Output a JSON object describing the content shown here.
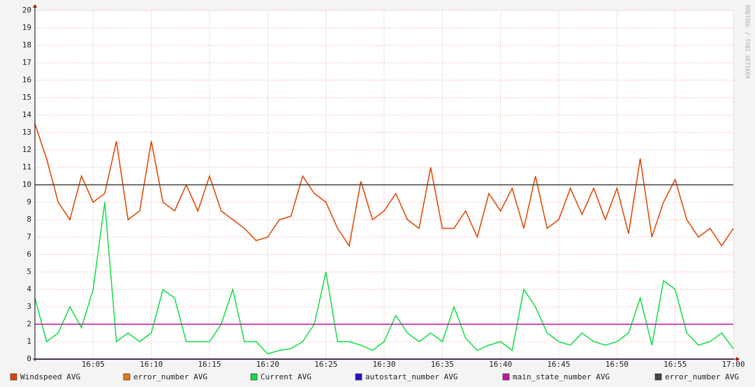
{
  "chart_data": {
    "type": "line",
    "watermark": "RRDTOOL / TOBI OETIKER",
    "x": [
      0,
      1,
      2,
      3,
      4,
      5,
      6,
      7,
      8,
      9,
      10,
      11,
      12,
      13,
      14,
      15,
      16,
      17,
      18,
      19,
      20,
      21,
      22,
      23,
      24,
      25,
      26,
      27,
      28,
      29,
      30,
      31,
      32,
      33,
      34,
      35,
      36,
      37,
      38,
      39,
      40,
      41,
      42,
      43,
      44,
      45,
      46,
      47,
      48,
      49,
      50,
      51,
      52,
      53,
      54,
      55,
      56,
      57,
      58,
      59,
      60
    ],
    "xlim": [
      0,
      60
    ],
    "xticks": [
      {
        "value": 5,
        "label": "16:05"
      },
      {
        "value": 10,
        "label": "16:10"
      },
      {
        "value": 15,
        "label": "16:15"
      },
      {
        "value": 20,
        "label": "16:20"
      },
      {
        "value": 25,
        "label": "16:25"
      },
      {
        "value": 30,
        "label": "16:30"
      },
      {
        "value": 35,
        "label": "16:35"
      },
      {
        "value": 40,
        "label": "16:40"
      },
      {
        "value": 45,
        "label": "16:45"
      },
      {
        "value": 50,
        "label": "16:50"
      },
      {
        "value": 55,
        "label": "16:55"
      },
      {
        "value": 60,
        "label": "17:00"
      }
    ],
    "ylim": [
      0,
      20
    ],
    "yticks": [
      0,
      1,
      2,
      3,
      4,
      5,
      6,
      7,
      8,
      9,
      10,
      11,
      12,
      13,
      14,
      15,
      16,
      17,
      18,
      19,
      20
    ],
    "grid": true,
    "series": [
      {
        "name": "Windspeed AVG",
        "color": "#dd4400",
        "values": [
          13.5,
          11.5,
          9,
          8,
          10.5,
          9,
          9.5,
          12.5,
          8,
          8.5,
          12.5,
          9,
          8.5,
          10,
          8.5,
          10.5,
          8.5,
          8,
          7.5,
          6.8,
          7,
          8,
          8.2,
          10.5,
          9.5,
          9,
          7.5,
          6.5,
          10.2,
          8,
          8.5,
          9.5,
          8,
          7.5,
          11,
          7.5,
          7.5,
          8.5,
          7,
          9.5,
          8.5,
          9.8,
          7.5,
          10.5,
          7.5,
          8,
          9.8,
          8.3,
          9.8,
          8,
          9.8,
          7.2,
          11.5,
          7,
          9,
          10.3,
          8,
          7,
          7.5,
          6.5,
          7.5
        ]
      },
      {
        "name": "error_number AVG",
        "color": "#ee7711",
        "x": [
          0,
          60
        ],
        "values": [
          0,
          0
        ]
      },
      {
        "name": "Current AVG",
        "color": "#11dd44",
        "values": [
          3.5,
          1,
          1.5,
          3,
          1.8,
          4,
          9,
          1,
          1.5,
          1,
          1.5,
          4,
          3.5,
          1,
          1,
          1,
          2,
          4,
          1,
          1,
          0.3,
          0.5,
          0.6,
          1,
          2,
          5,
          1,
          1,
          0.8,
          0.5,
          1,
          2.5,
          1.5,
          1,
          1.5,
          1,
          3,
          1.2,
          0.5,
          0.8,
          1,
          0.5,
          4,
          3,
          1.5,
          1,
          0.8,
          1.5,
          1,
          0.8,
          1,
          1.5,
          3.5,
          0.8,
          4.5,
          4,
          1.5,
          0.8,
          1,
          1.5,
          0.6
        ]
      },
      {
        "name": "autostart_number AVG",
        "color": "#2211cc",
        "x": [
          0,
          60
        ],
        "values": [
          0,
          0
        ]
      },
      {
        "name": "main_state_number AVG",
        "color": "#cc1199",
        "x": [
          0,
          60
        ],
        "values": [
          2,
          2
        ]
      },
      {
        "name": "error_number AVG",
        "color": "#444444",
        "x": [
          0,
          60
        ],
        "values": [
          10,
          10
        ]
      }
    ]
  }
}
